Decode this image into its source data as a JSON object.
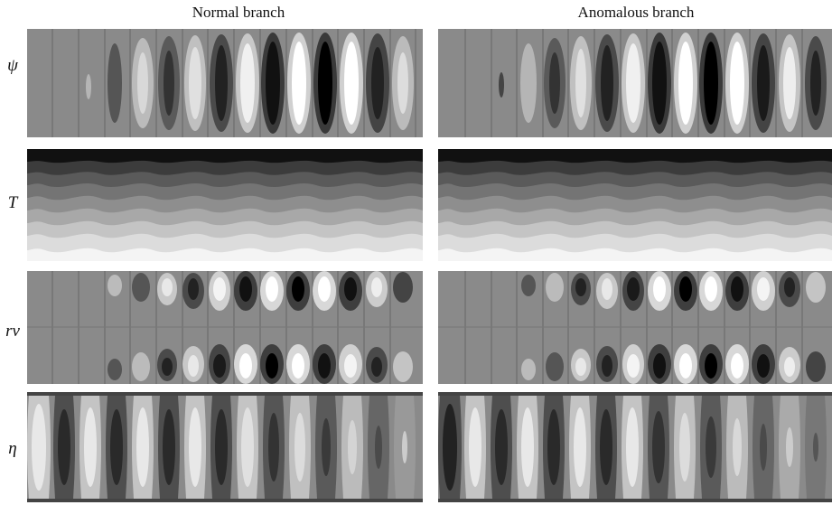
{
  "figure": {
    "columns": [
      "Normal branch",
      "Anomalous branch"
    ],
    "rows": [
      {
        "key": "psi",
        "label": "ψ"
      },
      {
        "key": "T",
        "label": "T"
      },
      {
        "key": "rv",
        "label": "rv"
      },
      {
        "key": "eta",
        "label": "η"
      }
    ]
  }
}
